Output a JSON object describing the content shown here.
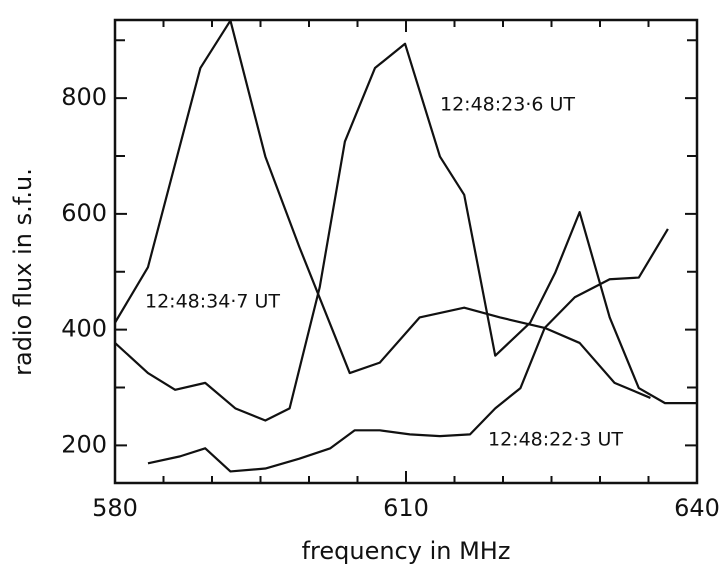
{
  "chart_data": {
    "type": "line",
    "xlabel": "frequency in MHz",
    "ylabel": "radio flux in s.f.u.",
    "xlim": [
      580,
      640
    ],
    "ylim": [
      135,
      935
    ],
    "xticks": [
      580,
      610,
      640
    ],
    "yticks": [
      200,
      400,
      600,
      800
    ],
    "xminorticks": [
      585,
      590,
      595,
      600,
      605,
      615,
      620,
      625,
      630,
      635
    ],
    "yminorticks": [
      300,
      500,
      700,
      900
    ],
    "series": [
      {
        "name": "12:48:34·7 UT",
        "color": "#111111",
        "x": [
          580,
          583.4,
          588.8,
          591.9,
          595.5,
          599,
          604.2,
          607.3,
          611.4,
          616,
          619.7,
          624.3,
          627.9,
          631.5,
          635.2
        ],
        "values": [
          412,
          508,
          852,
          934,
          699,
          543,
          325,
          343,
          421,
          438,
          421,
          403,
          377,
          308,
          282
        ]
      },
      {
        "name": "12:48:23·6 UT",
        "color": "#111111",
        "x": [
          580,
          583.4,
          586.2,
          589.3,
          592.4,
          595.5,
          598,
          601.1,
          603.7,
          606.8,
          609.9,
          613.5,
          616,
          619.2,
          622.8,
          625.4,
          627.9,
          631,
          634,
          636.7,
          640
        ],
        "values": [
          377,
          325,
          296,
          308,
          264,
          243,
          264,
          473,
          725,
          852,
          894,
          699,
          633,
          355,
          412,
          499,
          603,
          421,
          299,
          273,
          273
        ]
      },
      {
        "name": "12:48:22·3 UT",
        "color": "#111111",
        "x": [
          583.4,
          586.7,
          589.3,
          591.9,
          595.5,
          599,
          602.2,
          604.7,
          607.3,
          610.4,
          613.5,
          616.6,
          619.2,
          621.8,
          624.3,
          627.4,
          631,
          634,
          637
        ],
        "values": [
          169,
          181,
          195,
          155,
          160,
          177,
          195,
          226,
          226,
          219,
          216,
          219,
          264,
          299,
          403,
          456,
          487,
          490,
          574
        ]
      }
    ]
  }
}
